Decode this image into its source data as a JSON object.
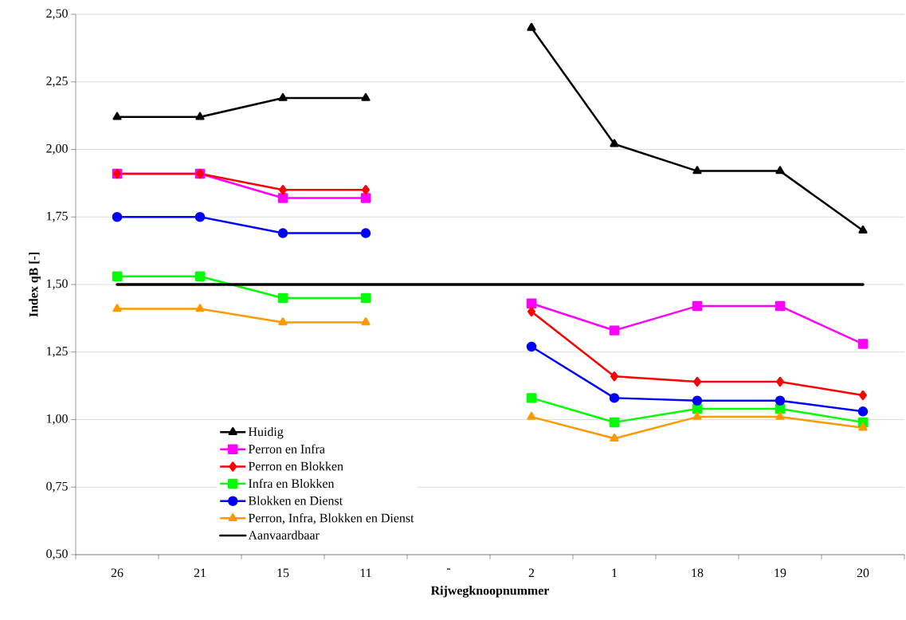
{
  "chart_data": {
    "type": "line",
    "xlabel": "Rijwegknoopnummer",
    "ylabel": "Index qB [-]",
    "categories": [
      "26",
      "21",
      "15",
      "11",
      "-",
      "2",
      "1",
      "18",
      "19",
      "20"
    ],
    "ylim": [
      0.5,
      2.5
    ],
    "yticks": [
      {
        "value": 0.5,
        "label": "0,50"
      },
      {
        "value": 0.75,
        "label": "0,75"
      },
      {
        "value": 1.0,
        "label": "1,00"
      },
      {
        "value": 1.25,
        "label": "1,25"
      },
      {
        "value": 1.5,
        "label": "1,50"
      },
      {
        "value": 1.75,
        "label": "1,75"
      },
      {
        "value": 2.0,
        "label": "2,00"
      },
      {
        "value": 2.25,
        "label": "2,25"
      },
      {
        "value": 2.5,
        "label": "2,50"
      }
    ],
    "grid": "y",
    "legend": "bottom left",
    "line_style": "solid",
    "series": [
      {
        "name": "Huidig",
        "color": "#000000",
        "marker": "triangle",
        "values": [
          2.12,
          2.12,
          2.19,
          2.19,
          null,
          2.45,
          2.02,
          1.92,
          1.92,
          1.7
        ]
      },
      {
        "name": "Perron en Infra",
        "color": "#ff00ff",
        "marker": "square",
        "values": [
          1.91,
          1.91,
          1.82,
          1.82,
          null,
          1.43,
          1.33,
          1.42,
          1.42,
          1.28
        ]
      },
      {
        "name": "Perron en Blokken",
        "color": "#ff0000",
        "marker": "diamond",
        "values": [
          1.91,
          1.91,
          1.85,
          1.85,
          null,
          1.4,
          1.16,
          1.14,
          1.14,
          1.09
        ]
      },
      {
        "name": "Infra en Blokken",
        "color": "#00ff00",
        "marker": "square",
        "values": [
          1.53,
          1.53,
          1.45,
          1.45,
          null,
          1.08,
          0.99,
          1.04,
          1.04,
          0.99
        ]
      },
      {
        "name": "Blokken en Dienst",
        "color": "#0000ff",
        "marker": "circle",
        "values": [
          1.75,
          1.75,
          1.69,
          1.69,
          null,
          1.27,
          1.08,
          1.07,
          1.07,
          1.03
        ]
      },
      {
        "name": "Perron, Infra, Blokken en Dienst",
        "color": "#ff9900",
        "marker": "triangle",
        "values": [
          1.41,
          1.41,
          1.36,
          1.36,
          null,
          1.01,
          0.93,
          1.01,
          1.01,
          0.97
        ]
      }
    ],
    "ref_lines": [
      {
        "axis": "y",
        "value": 1.5,
        "label": "Aanvaardbaar",
        "color": "#000000",
        "line_style": "solid"
      }
    ]
  }
}
